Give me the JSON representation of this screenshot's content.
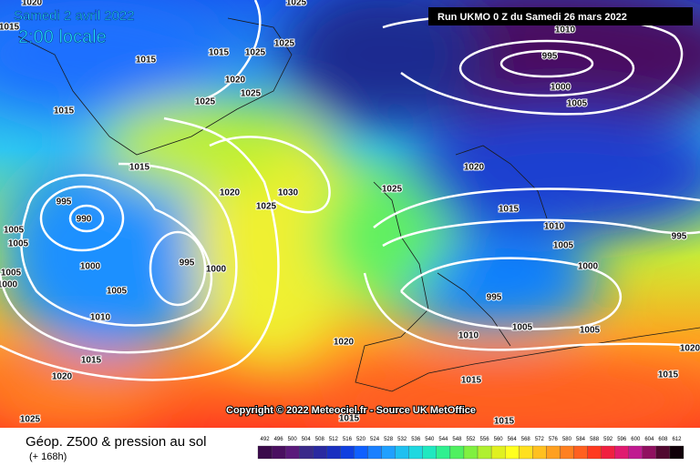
{
  "map": {
    "date_label": "Samedi 2 avril 2022",
    "time_label": "2:00 locale",
    "run_label": "Run UKMO 0 Z du Samedi 26 mars 2022",
    "copyright": "Copyright © 2022 Meteociel.fr - Source UK MetOffice",
    "isobar_labels": [
      1020,
      1025,
      1015,
      1015,
      1015,
      1025,
      1025,
      1020,
      1025,
      1025,
      1015,
      1015,
      1020,
      1030,
      1025,
      995,
      990,
      1005,
      1005,
      995,
      1000,
      1000,
      1005,
      1010,
      1015,
      1020,
      1025,
      1020,
      1025,
      1020,
      1010,
      995,
      1000,
      1005,
      1015,
      1010,
      1005,
      1000,
      995,
      995,
      1005,
      1010,
      1005,
      1015,
      1015,
      1015,
      1015,
      1020,
      1005,
      1000
    ]
  },
  "legend": {
    "title": "Géop. Z500 & pression au sol",
    "subtitle": "(+ 168h)",
    "scale": [
      492,
      496,
      500,
      504,
      508,
      512,
      516,
      520,
      524,
      528,
      532,
      536,
      540,
      544,
      548,
      552,
      556,
      560,
      564,
      568,
      572,
      576,
      580,
      584,
      588,
      592,
      596,
      600,
      604,
      608,
      612
    ],
    "colors": [
      "#3a0a4a",
      "#4a1060",
      "#5a1a7a",
      "#3a2a8a",
      "#2a2aa0",
      "#1a30c0",
      "#1040e0",
      "#1060ff",
      "#1a80ff",
      "#20a0ff",
      "#20c0f0",
      "#20d8e0",
      "#20e8c0",
      "#30f090",
      "#50f060",
      "#80f040",
      "#b0f030",
      "#e0f020",
      "#ffff20",
      "#ffe020",
      "#ffc020",
      "#ffa020",
      "#ff8020",
      "#ff6020",
      "#ff3a20",
      "#f02040",
      "#e01a70",
      "#c01a90",
      "#901060",
      "#500830",
      "#100008"
    ]
  }
}
